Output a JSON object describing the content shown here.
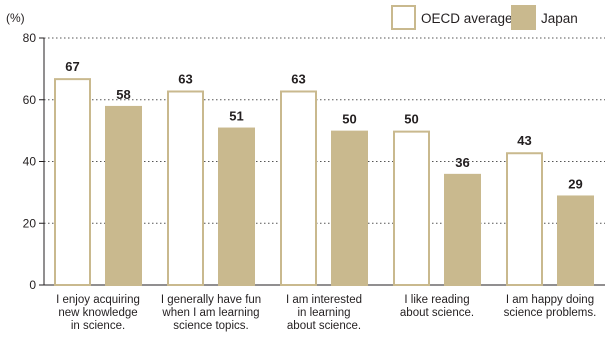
{
  "chart_data": {
    "type": "bar",
    "ylabel": "(%)",
    "ylim": [
      0,
      80
    ],
    "yticks": [
      0,
      20,
      40,
      60,
      80
    ],
    "grid": "dotted horizontal",
    "legend_position": "top-right",
    "categories": [
      [
        "I enjoy acquiring",
        "new knowledge",
        "in science."
      ],
      [
        "I generally have fun",
        "when I am learning",
        "science topics."
      ],
      [
        "I am interested",
        "in learning",
        "about science."
      ],
      [
        "I like reading",
        "about science."
      ],
      [
        "I am happy doing",
        "science problems."
      ]
    ],
    "series": [
      {
        "name": "OECD average",
        "values": [
          67,
          63,
          63,
          50,
          43
        ],
        "fill": "#ffffff",
        "stroke": "#c9b98e"
      },
      {
        "name": "Japan",
        "values": [
          58,
          51,
          50,
          36,
          29
        ],
        "fill": "#c9b98e",
        "stroke": "#c9b98e"
      }
    ]
  }
}
